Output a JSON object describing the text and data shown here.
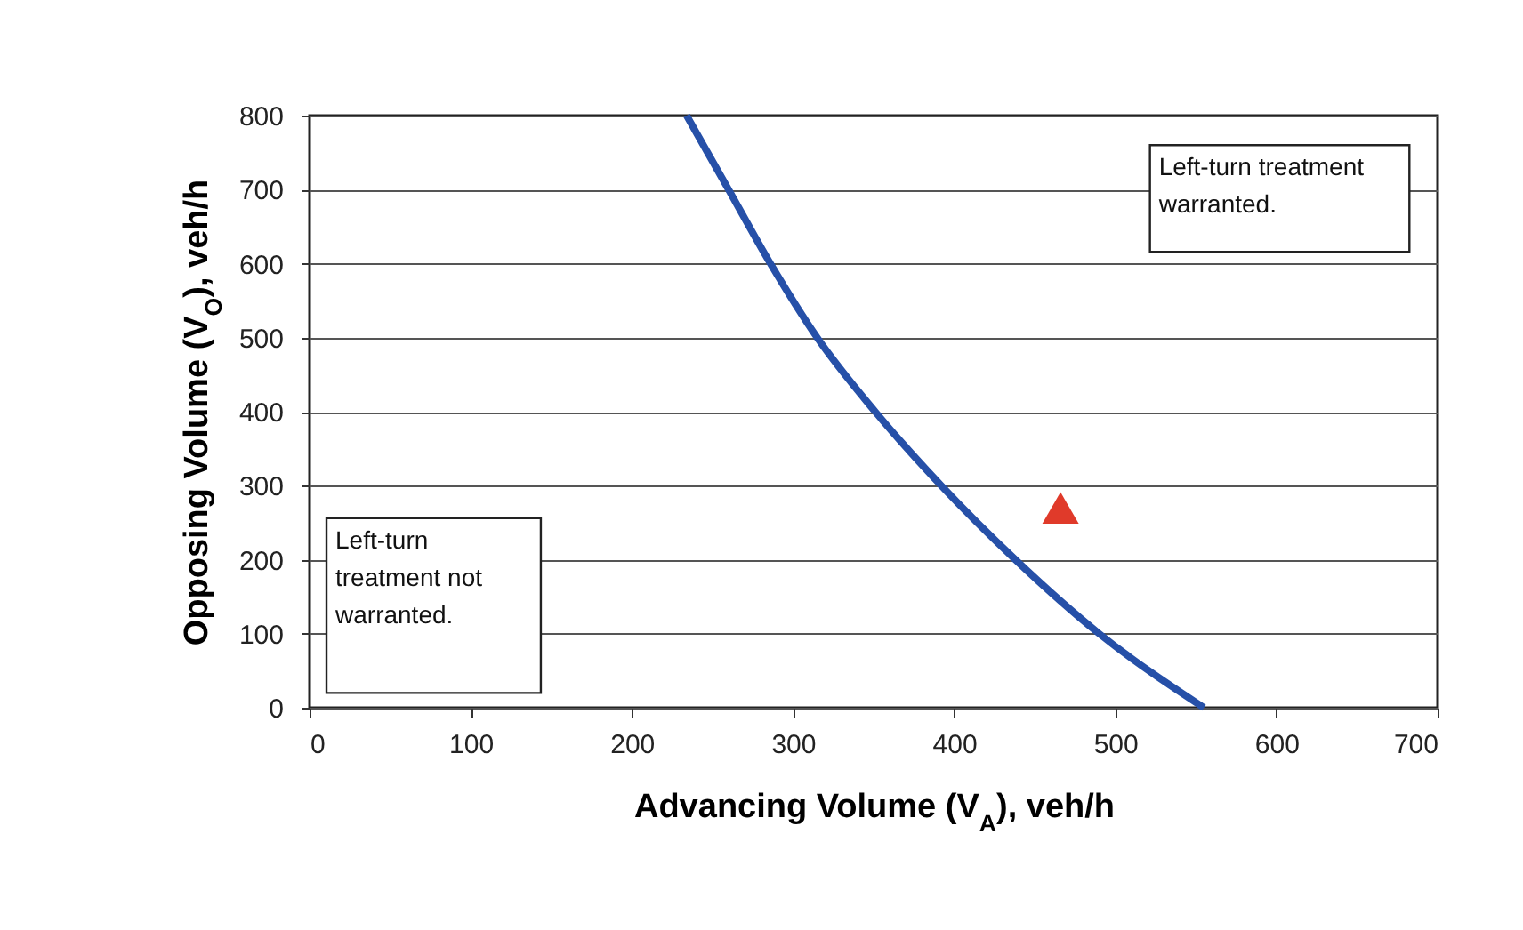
{
  "chart_data": {
    "type": "line",
    "xlabel": "Advancing Volume (V$_{A}$), veh/h",
    "ylabel": "Opposing Volume (V$_{O}$), veh/h",
    "xlim": [
      0,
      700
    ],
    "xticks": [
      0,
      100,
      200,
      300,
      400,
      500,
      600,
      700
    ],
    "ylim": [
      0,
      800
    ],
    "yticks": [
      0,
      100,
      200,
      300,
      400,
      500,
      600,
      700,
      800
    ],
    "grid": "y",
    "series": [
      {
        "type": "line",
        "color": "#2650a8",
        "marker": "none",
        "x": [
          234,
          260,
          286,
          315,
          351,
          392,
          438,
          490,
          555
        ],
        "values": [
          800,
          700,
          600,
          500,
          400,
          300,
          200,
          100,
          0
        ]
      },
      {
        "type": "scatter",
        "color": "#e03a2a",
        "marker": "triangle",
        "x": [
          466
        ],
        "values": [
          270
        ]
      }
    ],
    "annotations": [
      "Left-turn treatment warranted.",
      "Left-turn treatment not warranted."
    ]
  }
}
